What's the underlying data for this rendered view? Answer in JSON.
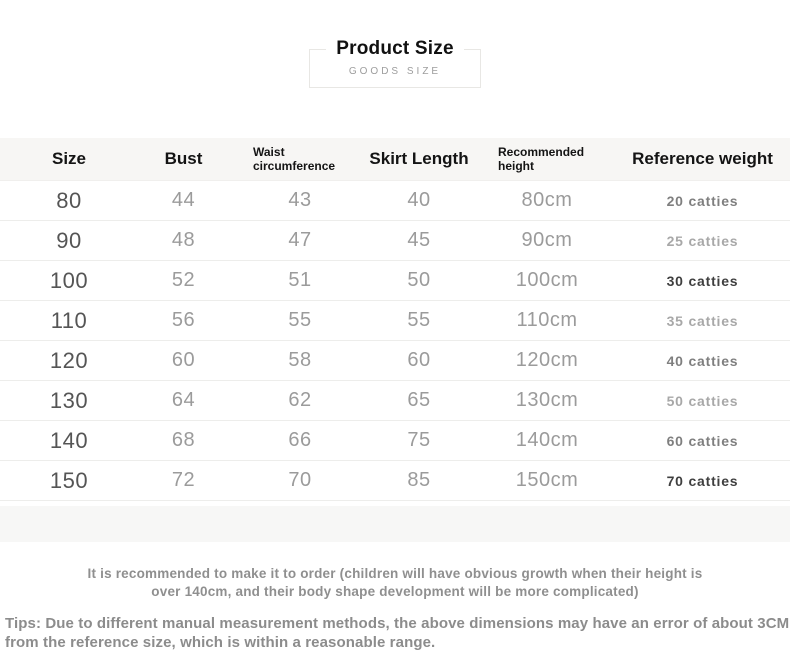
{
  "title": {
    "main": "Product Size",
    "sub": "GOODS SIZE"
  },
  "chart_data": {
    "type": "table",
    "title": "Product Size",
    "columns": [
      "Size",
      "Bust",
      "Waist circumference",
      "Skirt Length",
      "Recommended height",
      "Reference weight"
    ],
    "rows": [
      [
        "80",
        "44",
        "43",
        "40",
        "80cm",
        "20 catties"
      ],
      [
        "90",
        "48",
        "47",
        "45",
        "90cm",
        "25 catties"
      ],
      [
        "100",
        "52",
        "51",
        "50",
        "100cm",
        "30 catties"
      ],
      [
        "110",
        "56",
        "55",
        "55",
        "110cm",
        "35 catties"
      ],
      [
        "120",
        "60",
        "58",
        "60",
        "120cm",
        "40 catties"
      ],
      [
        "130",
        "64",
        "62",
        "65",
        "130cm",
        "50 catties"
      ],
      [
        "140",
        "68",
        "66",
        "75",
        "140cm",
        "60 catties"
      ],
      [
        "150",
        "72",
        "70",
        "85",
        "150cm",
        "70 catties"
      ]
    ]
  },
  "presentation": {
    "weight_emphasis": [
      "medium",
      "light",
      "dark",
      "light",
      "medium",
      "light",
      "medium",
      "dark"
    ],
    "colors": {
      "header_bg": "#f7f6f4",
      "row_divider": "#ededeb",
      "value_gray": "#9b9b9b",
      "size_gray": "#555555",
      "note_gray": "#8f8f8f"
    }
  },
  "notes": {
    "recommendation": [
      "It is recommended to make it to order (children will have obvious growth when their height is",
      "over 140cm, and their body shape development will be more complicated)"
    ],
    "tips": [
      "Tips: Due to different manual measurement methods, the above dimensions may have an error of about 3CM",
      "from the reference size, which is within a reasonable range."
    ]
  }
}
